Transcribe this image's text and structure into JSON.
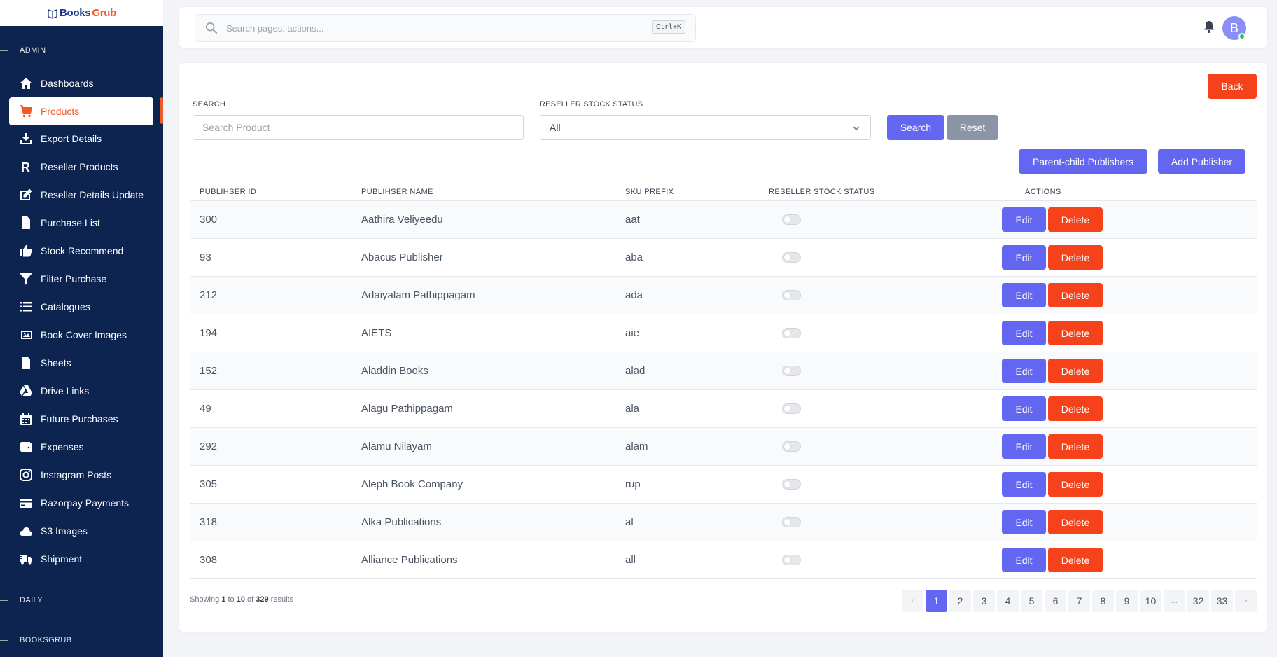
{
  "brand": {
    "part1": "Books",
    "part2": "Grub"
  },
  "sidebar": {
    "section_admin": "ADMIN",
    "section_daily": "DAILY",
    "section_booksgrub": "BOOKSGRUB",
    "items": [
      {
        "label": "Dashboards",
        "icon": "home-icon"
      },
      {
        "label": "Products",
        "icon": "cart-icon",
        "active": true
      },
      {
        "label": "Export Details",
        "icon": "download-icon"
      },
      {
        "label": "Reseller Products",
        "icon": "r-letter-icon"
      },
      {
        "label": "Reseller Details Update",
        "icon": "edit-icon"
      },
      {
        "label": "Purchase List",
        "icon": "invoice-icon"
      },
      {
        "label": "Stock Recommend",
        "icon": "thumbs-up-icon"
      },
      {
        "label": "Filter Purchase",
        "icon": "filter-icon"
      },
      {
        "label": "Catalogues",
        "icon": "list-icon"
      },
      {
        "label": "Book Cover Images",
        "icon": "images-icon"
      },
      {
        "label": "Sheets",
        "icon": "file-icon"
      },
      {
        "label": "Drive Links",
        "icon": "drive-icon"
      },
      {
        "label": "Future Purchases",
        "icon": "calendar-icon"
      },
      {
        "label": "Expenses",
        "icon": "wallet-icon"
      },
      {
        "label": "Instagram Posts",
        "icon": "instagram-icon"
      },
      {
        "label": "Razorpay Payments",
        "icon": "credit-card-icon"
      },
      {
        "label": "S3 Images",
        "icon": "cloud-icon"
      },
      {
        "label": "Shipment",
        "icon": "truck-icon"
      }
    ]
  },
  "topbar": {
    "search_placeholder": "Search pages, actions...",
    "shortcut": "Ctrl+K",
    "avatar_initial": "B"
  },
  "page": {
    "back_label": "Back",
    "search_label": "SEARCH",
    "search_placeholder": "Search Product",
    "status_label": "RESELLER STOCK STATUS",
    "status_value": "All",
    "search_button": "Search",
    "reset_button": "Reset",
    "parent_child_button": "Parent-child Publishers",
    "add_publisher_button": "Add Publisher"
  },
  "table": {
    "headers": [
      "PUBLIHSER ID",
      "PUBLIHSER NAME",
      "SKU PREFIX",
      "RESELLER STOCK STATUS",
      "ACTIONS"
    ],
    "edit_label": "Edit",
    "delete_label": "Delete",
    "rows": [
      {
        "id": "300",
        "name": "Aathira Veliyeedu",
        "sku": "aat",
        "status": false
      },
      {
        "id": "93",
        "name": "Abacus Publisher",
        "sku": "aba",
        "status": false
      },
      {
        "id": "212",
        "name": "Adaiyalam Pathippagam",
        "sku": "ada",
        "status": false
      },
      {
        "id": "194",
        "name": "AIETS",
        "sku": "aie",
        "status": false
      },
      {
        "id": "152",
        "name": "Aladdin Books",
        "sku": "alad",
        "status": false
      },
      {
        "id": "49",
        "name": "Alagu Pathippagam",
        "sku": "ala",
        "status": false
      },
      {
        "id": "292",
        "name": "Alamu Nilayam",
        "sku": "alam",
        "status": false
      },
      {
        "id": "305",
        "name": "Aleph Book Company",
        "sku": "rup",
        "status": false
      },
      {
        "id": "318",
        "name": "Alka Publications",
        "sku": "al",
        "status": false
      },
      {
        "id": "308",
        "name": "Alliance Publications",
        "sku": "all",
        "status": false
      }
    ]
  },
  "pagination": {
    "showing_prefix": "Showing",
    "from": "1",
    "to_word": "to",
    "to": "10",
    "of_word": "of",
    "total": "329",
    "results_word": "results",
    "prev": "‹",
    "next": "›",
    "pages": [
      "1",
      "2",
      "3",
      "4",
      "5",
      "6",
      "7",
      "8",
      "9",
      "10",
      "...",
      "32",
      "33"
    ],
    "current": "1"
  },
  "colors": {
    "sidebar_bg": "#0d2451",
    "accent_orange": "#f05a28",
    "primary_indigo": "#6366f1",
    "danger": "#f6421a"
  }
}
